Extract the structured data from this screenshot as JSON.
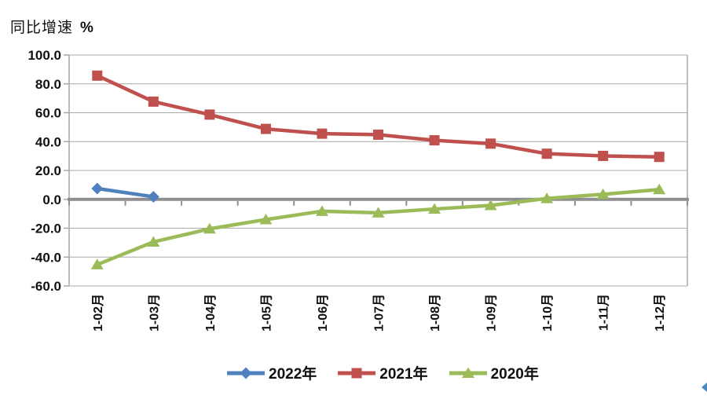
{
  "title": {
    "text": "同比增速",
    "unit": "%"
  },
  "colors": {
    "grid": "#a8a8a8",
    "axis": "#8f8f8f",
    "text": "#111111",
    "background": "#ffffff",
    "corner_artifact": "#2e74b5"
  },
  "chart_data": {
    "type": "line",
    "title": "同比增速 %",
    "xlabel": "",
    "ylabel": "同比增速 %",
    "categories": [
      "1-02月",
      "1-03月",
      "1-04月",
      "1-05月",
      "1-06月",
      "1-07月",
      "1-08月",
      "1-09月",
      "1-10月",
      "1-11月",
      "1-12月"
    ],
    "series": [
      {
        "name": "2022年",
        "color": "#4f81bd",
        "marker": "diamond",
        "values": [
          7.5,
          1.8,
          null,
          null,
          null,
          null,
          null,
          null,
          null,
          null,
          null
        ]
      },
      {
        "name": "2021年",
        "color": "#c0504d",
        "marker": "square",
        "values": [
          85.7,
          67.7,
          58.7,
          48.8,
          45.5,
          44.8,
          40.9,
          38.6,
          31.6,
          30.1,
          29.4
        ]
      },
      {
        "name": "2020年",
        "color": "#9bbb59",
        "marker": "triangle",
        "values": [
          -45.2,
          -29.5,
          -20.4,
          -14.0,
          -8.2,
          -9.3,
          -6.7,
          -4.2,
          0.6,
          3.5,
          6.8
        ]
      }
    ],
    "ylim": [
      -60,
      100
    ],
    "ytick_step": 20,
    "ytick_decimals": 1,
    "grid": true,
    "legend_position": "bottom"
  }
}
